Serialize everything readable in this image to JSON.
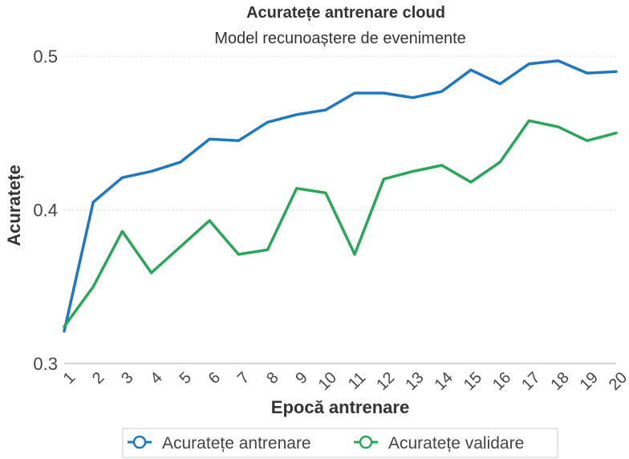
{
  "chart_data": {
    "type": "line",
    "title": "Acuratețe antrenare cloud",
    "subtitle": "Model recunoaștere de evenimente",
    "xlabel": "Epocă antrenare",
    "ylabel": "Acuratețe",
    "x": [
      1,
      2,
      3,
      4,
      5,
      6,
      7,
      8,
      9,
      10,
      11,
      12,
      13,
      14,
      15,
      16,
      17,
      18,
      19,
      20
    ],
    "x_tick_labels": [
      "1",
      "2",
      "3",
      "4",
      "5",
      "6",
      "7",
      "8",
      "9",
      "10",
      "11",
      "12",
      "13",
      "14",
      "15",
      "16",
      "17",
      "18",
      "19",
      "20"
    ],
    "ylim": [
      0.3,
      0.5
    ],
    "y_ticks": [
      0.3,
      0.4,
      0.5
    ],
    "y_tick_labels": [
      "0.3",
      "0.4",
      "0.5"
    ],
    "grid": true,
    "legend_position": "bottom",
    "series": [
      {
        "name": "Acuratețe antrenare",
        "color": "#1f77c4",
        "values": [
          0.321,
          0.405,
          0.421,
          0.425,
          0.431,
          0.446,
          0.445,
          0.457,
          0.462,
          0.465,
          0.476,
          0.476,
          0.473,
          0.477,
          0.491,
          0.482,
          0.495,
          0.497,
          0.489,
          0.49
        ]
      },
      {
        "name": "Acuratețe validare",
        "color": "#2aa65a",
        "values": [
          0.324,
          0.35,
          0.386,
          0.359,
          0.376,
          0.393,
          0.371,
          0.374,
          0.414,
          0.411,
          0.371,
          0.42,
          0.425,
          0.429,
          0.418,
          0.431,
          0.458,
          0.454,
          0.445,
          0.45
        ]
      }
    ]
  }
}
